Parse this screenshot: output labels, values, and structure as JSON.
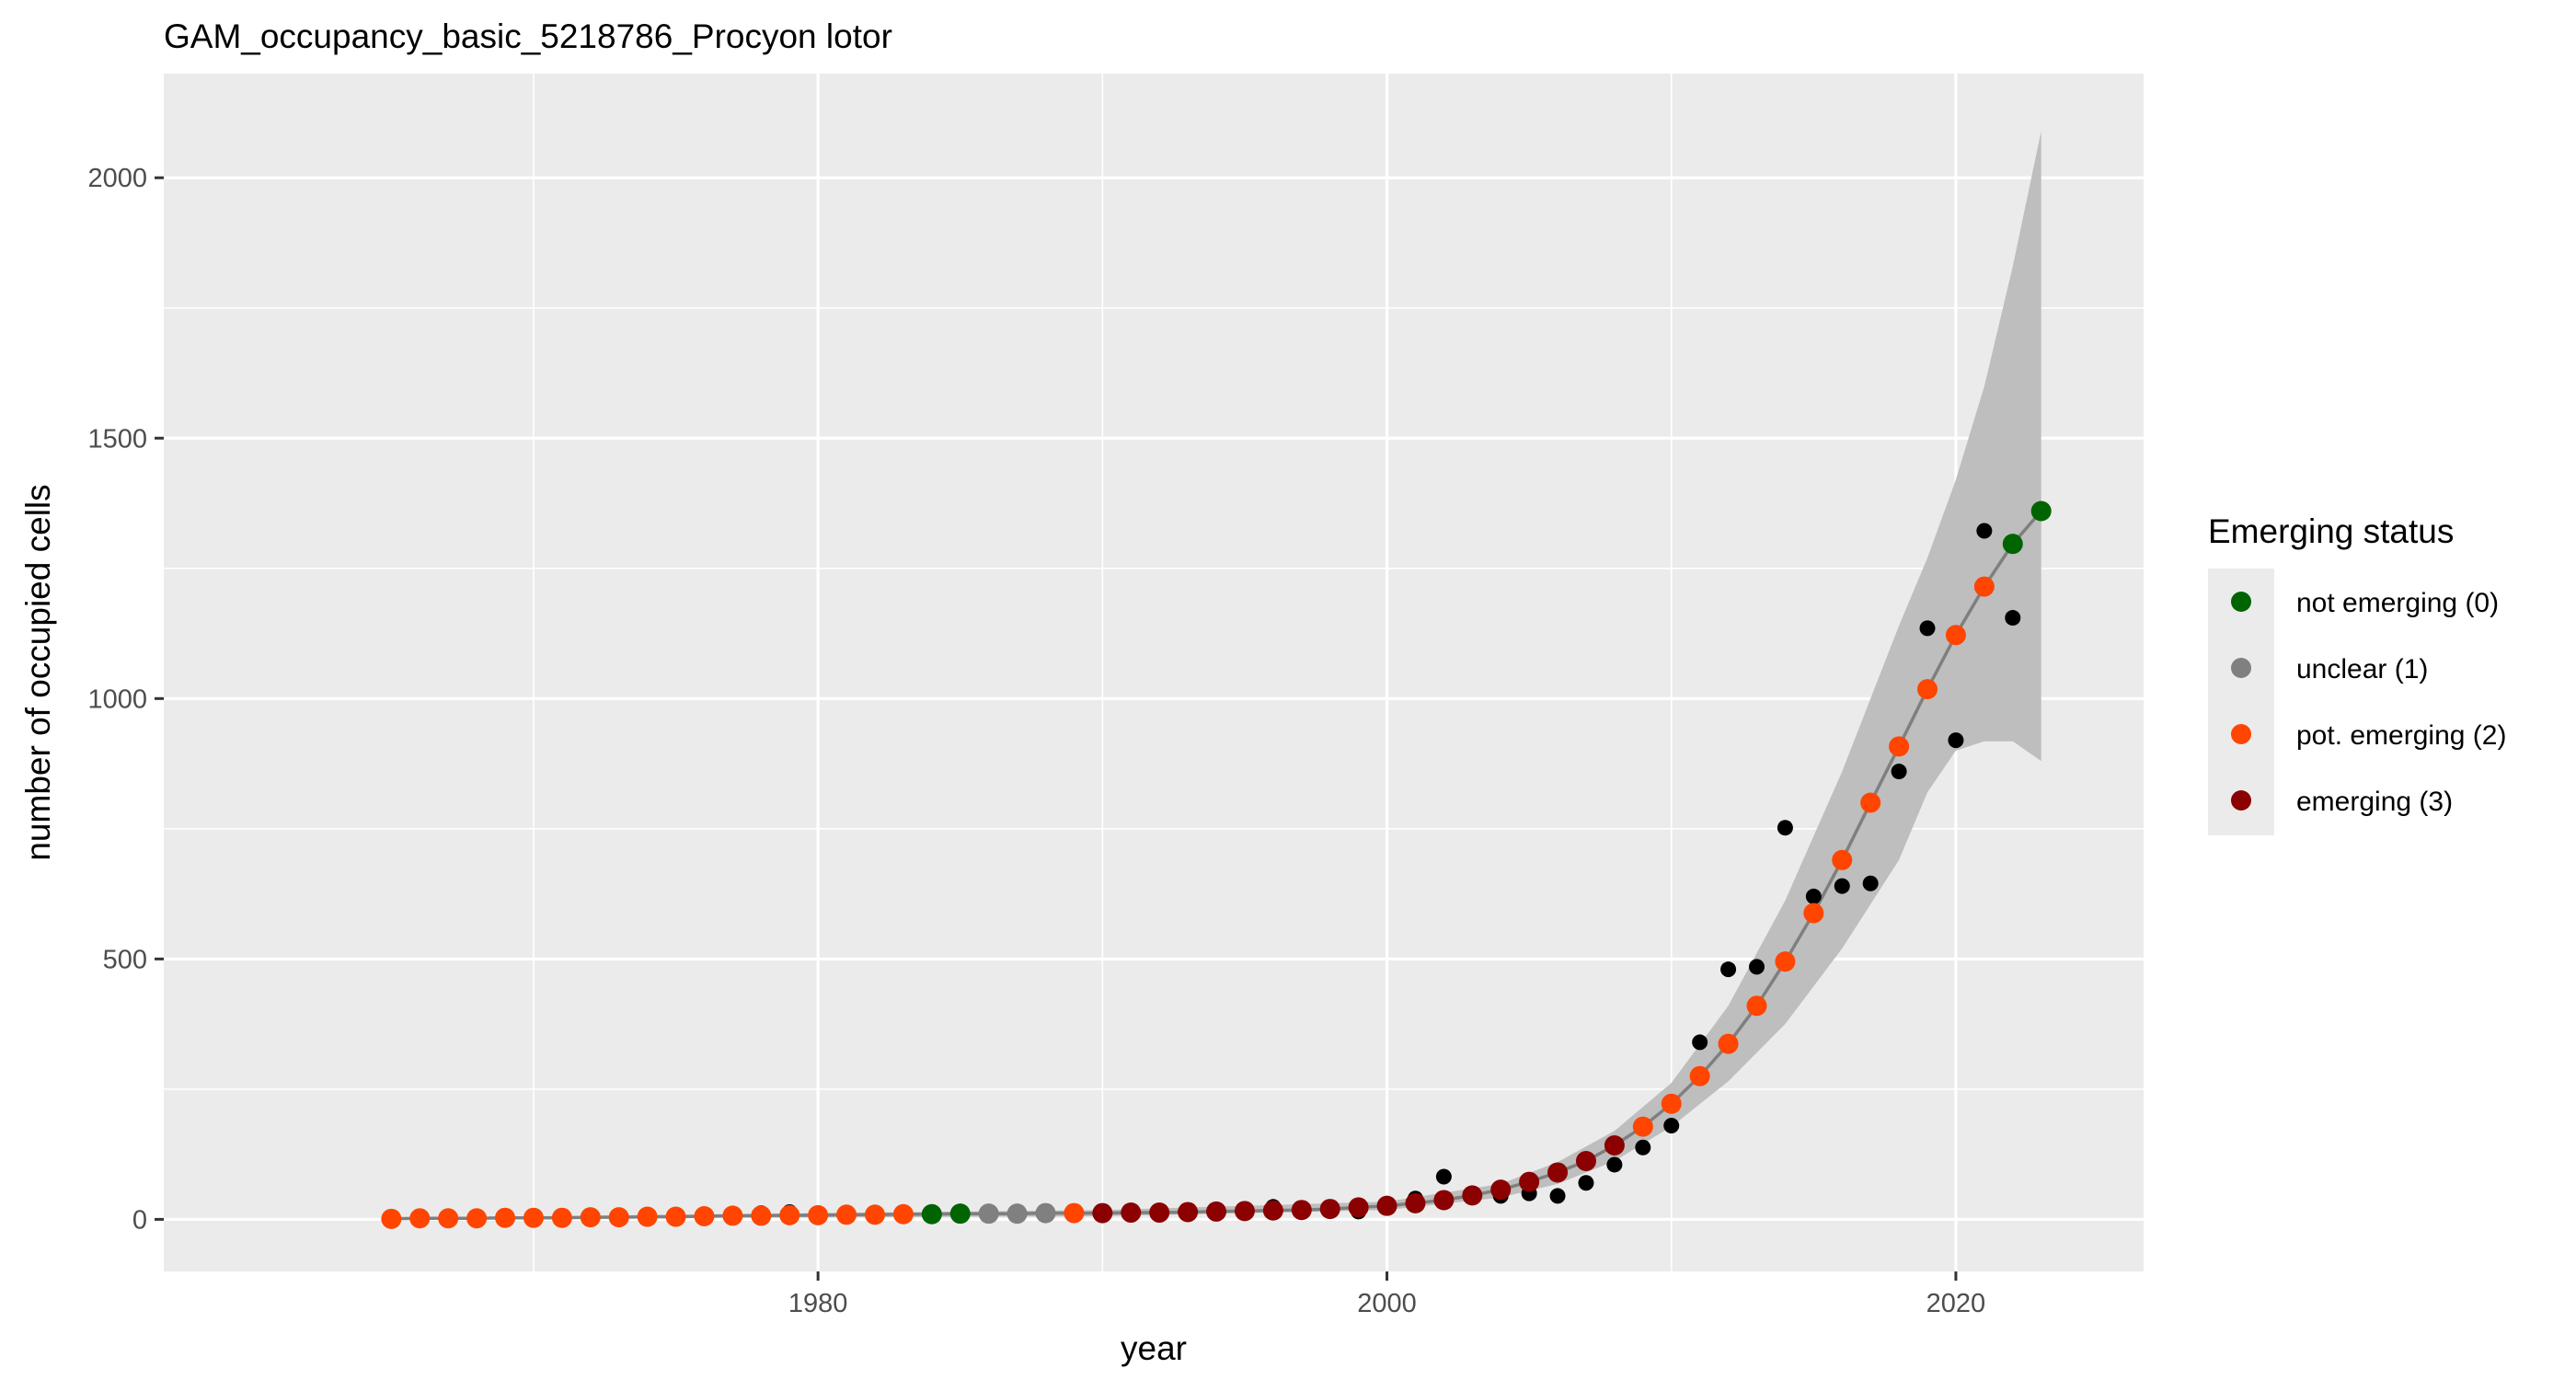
{
  "chart_data": {
    "type": "scatter",
    "title": "GAM_occupancy_basic_5218786_Procyon lotor",
    "xlabel": "year",
    "ylabel": "number of occupied cells",
    "xlim": [
      1957,
      2026.6
    ],
    "ylim": [
      -100,
      2200
    ],
    "x_ticks": [
      1980,
      2000,
      2020
    ],
    "y_ticks": [
      0,
      500,
      1000,
      1500,
      2000
    ],
    "grid": true,
    "legend_position": "right",
    "colors": {
      "panel_background": "#ebebeb",
      "grid": "#ffffff",
      "observed": "#000000",
      "fit_line": "#7f7f7f",
      "ci_band": "#bebebe"
    },
    "legend": {
      "title": "Emerging status",
      "entries": [
        {
          "label": "not emerging (0)",
          "status": 0,
          "color": "#006400"
        },
        {
          "label": "unclear (1)",
          "status": 1,
          "color": "#808080"
        },
        {
          "label": "pot. emerging (2)",
          "status": 2,
          "color": "#ff4500"
        },
        {
          "label": "emerging (3)",
          "status": 3,
          "color": "#8b0000"
        }
      ]
    },
    "observed": {
      "x": [
        1978,
        1979,
        1980,
        1989,
        1996,
        1999,
        2001,
        2002,
        2004,
        2005,
        2006,
        2007,
        2008,
        2009,
        2010,
        2011,
        2012,
        2013,
        2014,
        2015,
        2016,
        2017,
        2018,
        2019,
        2020,
        2021,
        2022
      ],
      "y": [
        12,
        14,
        10,
        15,
        24,
        15,
        40,
        82,
        45,
        50,
        45,
        70,
        105,
        138,
        180,
        340,
        480,
        485,
        752,
        620,
        640,
        645,
        860,
        1135,
        920,
        1322,
        1155
      ]
    },
    "fitted": {
      "x": [
        1965,
        1966,
        1967,
        1968,
        1969,
        1970,
        1971,
        1972,
        1973,
        1974,
        1975,
        1976,
        1977,
        1978,
        1979,
        1980,
        1981,
        1982,
        1983,
        1984,
        1985,
        1986,
        1987,
        1988,
        1989,
        1990,
        1991,
        1992,
        1993,
        1994,
        1995,
        1996,
        1997,
        1998,
        1999,
        2000,
        2001,
        2002,
        2003,
        2004,
        2005,
        2006,
        2007,
        2008,
        2009,
        2010,
        2011,
        2012,
        2013,
        2014,
        2015,
        2016,
        2017,
        2018,
        2019,
        2020,
        2021,
        2022,
        2023
      ],
      "y": [
        1,
        2,
        2,
        2,
        3,
        3,
        3,
        4,
        4,
        5,
        5,
        6,
        7,
        7,
        8,
        8,
        9,
        9,
        10,
        10,
        11,
        11,
        11,
        12,
        12,
        12,
        13,
        13,
        14,
        15,
        16,
        17,
        18,
        20,
        23,
        26,
        31,
        37,
        46,
        57,
        72,
        90,
        112,
        142,
        178,
        222,
        275,
        337,
        410,
        495,
        588,
        690,
        800,
        908,
        1018,
        1122,
        1215,
        1297,
        1360
      ],
      "status": [
        2,
        2,
        2,
        2,
        2,
        2,
        2,
        2,
        2,
        2,
        2,
        2,
        2,
        2,
        2,
        2,
        2,
        2,
        2,
        0,
        0,
        1,
        1,
        1,
        2,
        3,
        3,
        3,
        3,
        3,
        3,
        3,
        3,
        3,
        3,
        3,
        3,
        3,
        3,
        3,
        3,
        3,
        3,
        3,
        2,
        2,
        2,
        2,
        2,
        2,
        2,
        2,
        2,
        2,
        2,
        2,
        2,
        0,
        0
      ]
    },
    "ci_band": {
      "x": [
        1965,
        1990,
        2000,
        2004,
        2006,
        2008,
        2010,
        2012,
        2014,
        2016,
        2018,
        2019,
        2020,
        2021,
        2022,
        2023
      ],
      "lower": [
        0,
        6,
        18,
        42,
        68,
        112,
        178,
        265,
        375,
        520,
        690,
        820,
        900,
        918,
        918,
        880
      ],
      "upper": [
        3,
        18,
        34,
        68,
        110,
        170,
        262,
        410,
        612,
        860,
        1140,
        1270,
        1420,
        1600,
        1830,
        2090
      ]
    }
  }
}
